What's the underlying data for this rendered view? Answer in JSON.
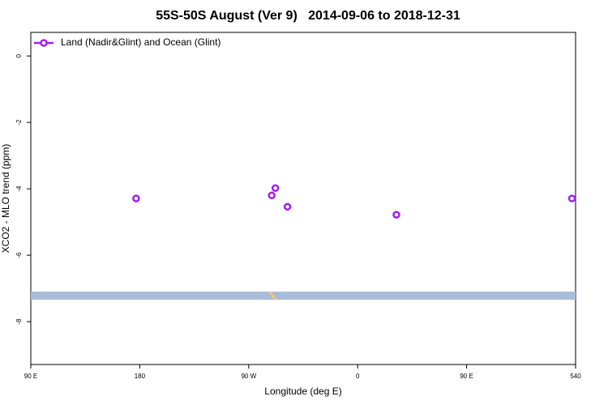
{
  "chart_data": {
    "type": "scatter",
    "title": "55S-50S August (Ver 9)   2014-09-06 to 2018-12-31",
    "x_label": "Longitude (deg E)",
    "y_label": "XCO2 - MLO trend (ppm)",
    "series": [
      {
        "name": "Land (Nadir&Glint) and Ocean (Glint)",
        "color": "#a020f0",
        "x": [
          177,
          289,
          292,
          302,
          392,
          537
        ],
        "values": [
          -4.29,
          -4.2,
          -3.98,
          -4.54,
          -4.78,
          -4.29
        ]
      }
    ],
    "xlim": [
      90,
      540
    ],
    "xticks": [
      {
        "value": 90,
        "label": "90 E"
      },
      180,
      {
        "value": 270,
        "label": "90 W"
      },
      {
        "value": 360,
        "label": "0"
      },
      {
        "value": 450,
        "label": "90 E"
      },
      540
    ],
    "ylim": [
      -9.29,
      0.71
    ],
    "yticks": [
      0,
      -2,
      -4,
      -6,
      -8
    ],
    "legend": "top-left"
  }
}
